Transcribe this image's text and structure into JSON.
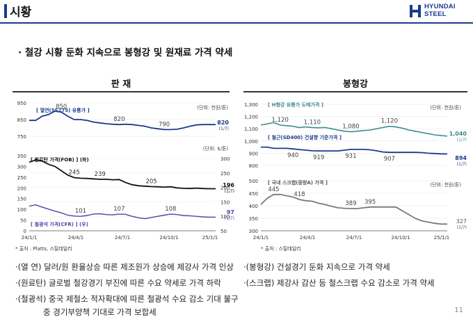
{
  "header": {
    "title": "시황",
    "logo_line1": "HYUNDAI",
    "logo_line2": "STEEL"
  },
  "headline": "· 철강 시황 둔화 지속으로 봉형강 및 원재료 가격 약세",
  "sections": {
    "left": "판   재",
    "right": "봉형강"
  },
  "colors": {
    "navy": "#1a3a8c",
    "teal": "#3d8c8c",
    "black": "#111111",
    "purple": "#5a3ea8",
    "gray": "#7a7a7a"
  },
  "left_chart": {
    "unit_top": "(단위: 천원/톤)",
    "unit_mid": "(단위: $/톤)",
    "source": "* 출처 : Platts, 스틸데일리",
    "x_ticks": [
      "24/1/1",
      "24/4/1",
      "24/7/1",
      "24/10/1",
      "25/1/1"
    ]
  },
  "right_chart": {
    "unit_top": "(단위: 천원/톤)",
    "unit_bottom": "(단위: 천원/톤)",
    "source": "* 출처 : 스틸데일리",
    "x_ticks": [
      "24/1/1",
      "24/4/1",
      "24/7/1",
      "24/10/1",
      "25/1/1"
    ]
  },
  "chart_data": [
    {
      "type": "line",
      "panel": "판재 - 열연",
      "series": [
        {
          "name": "[ 열연(SS275) 유통가 ]",
          "color": "#1a3a8c",
          "values": [
            845,
            845,
            870,
            880,
            900,
            895,
            870,
            850,
            850,
            845,
            835,
            830,
            825,
            822,
            820,
            822,
            820,
            815,
            810,
            800,
            795,
            790,
            790,
            792,
            800,
            810,
            818,
            820,
            820,
            820
          ]
        }
      ],
      "x_range": [
        "24/1/1",
        "25/1/10"
      ],
      "ylim": [
        750,
        950
      ],
      "y_ticks": [
        750,
        850,
        950
      ],
      "annotations": [
        {
          "label": "850",
          "value": 850
        },
        {
          "label": "820",
          "value": 820
        },
        {
          "label": "790",
          "value": 790
        }
      ],
      "end_label": "820",
      "end_date": "(1/7)"
    },
    {
      "type": "line",
      "panel": "판재 - 원료탄/철광석",
      "series": [
        {
          "name": "[ 원료탄 가격(FOB) ]",
          "unit_tag": "(좌)",
          "color": "#111111",
          "axis": "left",
          "values": [
            320,
            330,
            325,
            310,
            300,
            280,
            260,
            248,
            245,
            244,
            242,
            240,
            240,
            238,
            239,
            225,
            215,
            210,
            208,
            206,
            205,
            204,
            205,
            200,
            198,
            197,
            199,
            197,
            196,
            196
          ]
        },
        {
          "name": "[ 철광석 가격(CFR) ]",
          "unit_tag": "(우)",
          "color": "#5a3ea8",
          "axis": "right",
          "values": [
            135,
            140,
            132,
            125,
            118,
            112,
            104,
            101,
            100,
            103,
            108,
            109,
            106,
            105,
            108,
            107,
            100,
            95,
            92,
            96,
            100,
            104,
            108,
            106,
            103,
            102,
            100,
            98,
            97,
            97
          ]
        }
      ],
      "x_range": [
        "24/1/1",
        "25/1/10"
      ],
      "ylim_left": [
        0,
        350
      ],
      "yticks_left": [
        0,
        50,
        100,
        150,
        200,
        250,
        300,
        350
      ],
      "ylim_right": [
        50,
        300
      ],
      "yticks_right": [
        50,
        100,
        150,
        200,
        250,
        300
      ],
      "annotations": [
        {
          "label": "245",
          "series": 0
        },
        {
          "label": "239",
          "series": 0
        },
        {
          "label": "205",
          "series": 0
        },
        {
          "label": "101",
          "series": 1
        },
        {
          "label": "107",
          "series": 1
        },
        {
          "label": "108",
          "series": 1
        }
      ],
      "end_labels": [
        {
          "label": "196",
          "date": "(1/7)"
        },
        {
          "label": "97",
          "date": "(1/7)"
        }
      ]
    },
    {
      "type": "line",
      "panel": "봉형강 - H형강/철근",
      "series": [
        {
          "name": "[ H형강 유통가 도매가격 ]",
          "color": "#3d8c8c",
          "values": [
            1130,
            1140,
            1150,
            1130,
            1125,
            1120,
            1110,
            1115,
            1110,
            1108,
            1110,
            1100,
            1090,
            1080,
            1075,
            1080,
            1085,
            1090,
            1100,
            1110,
            1120,
            1115,
            1105,
            1090,
            1080,
            1070,
            1060,
            1050,
            1045,
            1040
          ]
        },
        {
          "name": "[ 철근(SD400) 건설향 기준가격 ]",
          "color": "#1a3a8c",
          "values": [
            950,
            950,
            940,
            940,
            940,
            935,
            930,
            925,
            920,
            919,
            919,
            919,
            919,
            925,
            931,
            931,
            931,
            928,
            920,
            910,
            907,
            907,
            907,
            907,
            907,
            905,
            900,
            898,
            895,
            894
          ]
        }
      ],
      "x_range": [
        "24/1/1",
        "25/1/10"
      ],
      "ylim": [
        800,
        1300
      ],
      "y_ticks": [
        800,
        900,
        1000,
        1100,
        1200,
        1300
      ],
      "annotations": [
        {
          "label": "1,120",
          "series": 0
        },
        {
          "label": "1,110",
          "series": 0
        },
        {
          "label": "1,080",
          "series": 0
        },
        {
          "label": "1,120",
          "series": 0
        },
        {
          "label": "940",
          "series": 1
        },
        {
          "label": "919",
          "series": 1
        },
        {
          "label": "931",
          "series": 1
        },
        {
          "label": "907",
          "series": 1
        }
      ],
      "end_labels": [
        {
          "label": "1,040",
          "date": "(1/7)"
        },
        {
          "label": "894",
          "date": "(1/7)"
        }
      ]
    },
    {
      "type": "line",
      "panel": "봉형강 - 국내 스크랩",
      "series": [
        {
          "name": "[ 국내 스크랩(중량A) 가격 ]",
          "color": "#7a7a7a",
          "values": [
            405,
            430,
            445,
            445,
            440,
            435,
            425,
            420,
            418,
            410,
            405,
            398,
            392,
            390,
            389,
            389,
            392,
            395,
            395,
            395,
            395,
            395,
            380,
            365,
            350,
            340,
            335,
            330,
            327,
            327
          ]
        }
      ],
      "x_range": [
        "24/1/1",
        "25/1/10"
      ],
      "ylim": [
        300,
        500
      ],
      "y_ticks": [
        300,
        350,
        400,
        450,
        500
      ],
      "annotations": [
        {
          "label": "445"
        },
        {
          "label": "418"
        },
        {
          "label": "389"
        },
        {
          "label": "395"
        }
      ],
      "end_label": "327",
      "end_date": "(1/7)"
    }
  ],
  "bullets_left": [
    "·(열   연) 달러/원 환율상승 따른 제조원가 상승에 제강사 가격 인상",
    "·(원료탄) 글로벌 철강경기 부진에 따른 수요 약세로 가격 하락",
    "·(철광석) 중국 제철소 적자확대에 따른 철광석 수요 감소 기대 불구",
    "중 경기부양책 기대로 가격 보합세"
  ],
  "bullets_right": [
    "·(봉형강) 건설경기 둔화 지속으로 가격 약세",
    "·(스크랩) 제강사 감산 등 철스크랩 수요 감소로 가격 약세"
  ],
  "page_number": "11"
}
